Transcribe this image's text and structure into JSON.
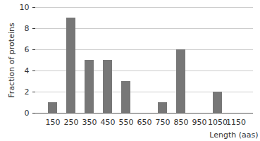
{
  "chart_data": {
    "type": "bar",
    "categories": [
      "150",
      "250",
      "350",
      "450",
      "550",
      "650",
      "750",
      "850",
      "950",
      "1050",
      "1150"
    ],
    "values": [
      1,
      9,
      5,
      5,
      3,
      0,
      1,
      6,
      0,
      2,
      0
    ],
    "color": "#777777",
    "xlabel": "Length (aas)",
    "ylabel": "Fraction of proteins",
    "ylim": [
      0,
      10
    ],
    "yticks": [
      0,
      2,
      4,
      6,
      8,
      10
    ],
    "grid": true
  }
}
